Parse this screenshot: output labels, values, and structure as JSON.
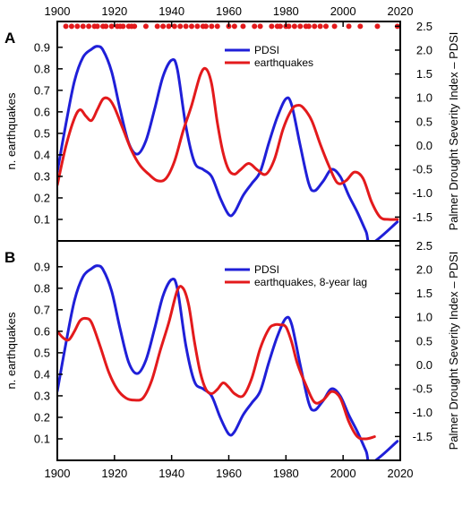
{
  "chart_data": [
    {
      "type": "line",
      "panel_label": "A",
      "x_axis_top_ticks": [
        1900,
        1920,
        1940,
        1960,
        1980,
        2000,
        2020
      ],
      "xlim": [
        1900,
        2020
      ],
      "ylabel_left": "n. earthquakes",
      "ylim_left": [
        0,
        1.02
      ],
      "yticks_left": [
        0.1,
        0.2,
        0.3,
        0.4,
        0.5,
        0.6,
        0.7,
        0.8,
        0.9
      ],
      "ylabel_right": "Palmer Drought Severity Index – PDSI",
      "ylim_right": [
        -2.0,
        2.6
      ],
      "yticks_right": [
        -1.5,
        -1.0,
        -0.5,
        0.0,
        0.5,
        1.0,
        1.5,
        2.0,
        2.5
      ],
      "legend_position": "top-center",
      "event_markers": {
        "color": "#e31a1c",
        "level_right_axis": 2.5,
        "years": [
          1903,
          1905,
          1907,
          1909,
          1911,
          1913,
          1914,
          1916,
          1917,
          1919,
          1921,
          1922,
          1923,
          1925,
          1926,
          1927,
          1931,
          1935,
          1937,
          1939,
          1941,
          1943,
          1945,
          1947,
          1949,
          1951,
          1952,
          1954,
          1956,
          1960,
          1962,
          1965,
          1969,
          1971,
          1975,
          1977,
          1978,
          1980,
          1981,
          1983,
          1985,
          1987,
          1988,
          1990,
          1992,
          1994,
          1997,
          2002,
          2006,
          2012,
          2019
        ]
      },
      "series": [
        {
          "name": "PDSI",
          "axis": "right",
          "color": "#1f1fd8",
          "x": [
            1900,
            1903,
            1906,
            1909,
            1912,
            1914,
            1916,
            1919,
            1922,
            1925,
            1928,
            1931,
            1934,
            1937,
            1940,
            1942,
            1945,
            1948,
            1951,
            1954,
            1957,
            1960,
            1962,
            1965,
            1968,
            1971,
            1974,
            1977,
            1980,
            1982,
            1985,
            1988,
            1990,
            1993,
            1996,
            1999,
            2002,
            2005,
            2008,
            2010,
            2019
          ],
          "values": [
            -0.55,
            0.45,
            1.35,
            1.85,
            2.02,
            2.08,
            2.0,
            1.55,
            0.75,
            0.05,
            -0.18,
            0.1,
            0.75,
            1.45,
            1.79,
            1.6,
            0.4,
            -0.35,
            -0.5,
            -0.65,
            -1.1,
            -1.45,
            -1.4,
            -1.05,
            -0.8,
            -0.55,
            0.05,
            0.6,
            0.98,
            0.85,
            0.0,
            -0.8,
            -0.95,
            -0.75,
            -0.5,
            -0.65,
            -1.05,
            -1.4,
            -1.8,
            -2.05,
            -1.6
          ]
        },
        {
          "name": "earthquakes",
          "axis": "left",
          "color": "#e31a1c",
          "x": [
            1900,
            1903,
            1906,
            1908,
            1910,
            1912,
            1914,
            1916,
            1918,
            1920,
            1923,
            1926,
            1929,
            1932,
            1935,
            1938,
            1941,
            1944,
            1947,
            1950,
            1952,
            1954,
            1956,
            1958,
            1960,
            1962,
            1964,
            1967,
            1970,
            1973,
            1976,
            1979,
            1982,
            1984,
            1986,
            1989,
            1992,
            1995,
            1998,
            2001,
            2004,
            2007,
            2010,
            2013,
            2016,
            2019
          ],
          "values": [
            0.26,
            0.44,
            0.57,
            0.61,
            0.58,
            0.56,
            0.61,
            0.66,
            0.66,
            0.62,
            0.52,
            0.42,
            0.35,
            0.31,
            0.28,
            0.29,
            0.37,
            0.51,
            0.63,
            0.77,
            0.8,
            0.73,
            0.55,
            0.41,
            0.33,
            0.31,
            0.33,
            0.36,
            0.33,
            0.31,
            0.38,
            0.52,
            0.61,
            0.63,
            0.62,
            0.56,
            0.45,
            0.35,
            0.27,
            0.28,
            0.32,
            0.29,
            0.18,
            0.11,
            0.1,
            0.1
          ]
        }
      ]
    },
    {
      "type": "line",
      "panel_label": "B",
      "x_axis_bottom_ticks": [
        1900,
        1920,
        1940,
        1960,
        1980,
        2000,
        2020
      ],
      "xlim": [
        1900,
        2020
      ],
      "ylabel_left": "n. earthquakes",
      "ylim_left": [
        0,
        1.02
      ],
      "yticks_left": [
        0.1,
        0.2,
        0.3,
        0.4,
        0.5,
        0.6,
        0.7,
        0.8,
        0.9
      ],
      "ylabel_right": "Palmer Drought Severity Index – PDSI",
      "ylim_right": [
        -2.0,
        2.6
      ],
      "yticks_right": [
        -1.5,
        -1.0,
        -0.5,
        0.0,
        0.5,
        1.0,
        1.5,
        2.0,
        2.5
      ],
      "legend_position": "top-center",
      "series": [
        {
          "name": "PDSI",
          "axis": "right",
          "color": "#1f1fd8",
          "x": [
            1900,
            1903,
            1906,
            1909,
            1912,
            1914,
            1916,
            1919,
            1922,
            1925,
            1928,
            1931,
            1934,
            1937,
            1940,
            1942,
            1945,
            1948,
            1951,
            1954,
            1957,
            1960,
            1962,
            1965,
            1968,
            1971,
            1974,
            1977,
            1980,
            1982,
            1985,
            1988,
            1990,
            1993,
            1996,
            1999,
            2002,
            2005,
            2008,
            2010,
            2019
          ],
          "values": [
            -0.55,
            0.45,
            1.35,
            1.85,
            2.02,
            2.08,
            2.0,
            1.55,
            0.75,
            0.05,
            -0.18,
            0.1,
            0.75,
            1.45,
            1.79,
            1.6,
            0.4,
            -0.35,
            -0.5,
            -0.65,
            -1.1,
            -1.45,
            -1.4,
            -1.05,
            -0.8,
            -0.55,
            0.05,
            0.6,
            0.98,
            0.85,
            0.0,
            -0.8,
            -0.95,
            -0.75,
            -0.5,
            -0.65,
            -1.05,
            -1.4,
            -1.8,
            -2.05,
            -1.6
          ]
        },
        {
          "name": "earthquakes, 8-year lag",
          "axis": "left",
          "color": "#e31a1c",
          "x": [
            1900,
            1902,
            1904,
            1906,
            1908,
            1910,
            1912,
            1915,
            1918,
            1921,
            1924,
            1927,
            1930,
            1933,
            1936,
            1939,
            1942,
            1944,
            1946,
            1948,
            1950,
            1952,
            1954,
            1956,
            1958,
            1960,
            1962,
            1965,
            1968,
            1971,
            1974,
            1976,
            1978,
            1980,
            1982,
            1984,
            1987,
            1990,
            1993,
            1996,
            1999,
            2002,
            2005,
            2008,
            2011
          ],
          "values": [
            0.6,
            0.57,
            0.56,
            0.6,
            0.65,
            0.66,
            0.64,
            0.53,
            0.41,
            0.33,
            0.29,
            0.28,
            0.29,
            0.37,
            0.51,
            0.64,
            0.79,
            0.8,
            0.72,
            0.55,
            0.41,
            0.33,
            0.31,
            0.33,
            0.36,
            0.34,
            0.31,
            0.3,
            0.38,
            0.52,
            0.61,
            0.63,
            0.63,
            0.62,
            0.55,
            0.45,
            0.35,
            0.27,
            0.28,
            0.32,
            0.29,
            0.18,
            0.11,
            0.1,
            0.11
          ]
        }
      ]
    }
  ]
}
